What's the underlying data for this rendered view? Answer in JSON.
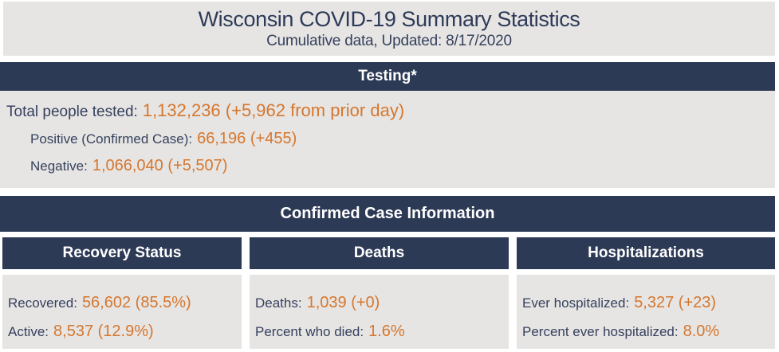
{
  "header": {
    "title": "Wisconsin COVID-19 Summary Statistics",
    "subtitle": "Cumulative data, Updated: 8/17/2020"
  },
  "testing": {
    "header": "Testing*",
    "rows": [
      {
        "label": "Total people tested:",
        "value": "1,132,236 (+5,962 from prior day)"
      },
      {
        "label": "Positive (Confirmed Case):",
        "value": "66,196 (+455)"
      },
      {
        "label": "Negative:",
        "value": "1,066,040 (+5,507)"
      }
    ]
  },
  "confirmed": {
    "header": "Confirmed Case Information",
    "columns": [
      {
        "header": "Recovery Status",
        "rows": [
          {
            "label": "Recovered:",
            "value": "56,602 (85.5%)"
          },
          {
            "label": "Active:",
            "value": "8,537 (12.9%)"
          }
        ]
      },
      {
        "header": "Deaths",
        "rows": [
          {
            "label": "Deaths:",
            "value": "1,039 (+0)"
          },
          {
            "label": "Percent who died:",
            "value": "1.6%"
          }
        ]
      },
      {
        "header": "Hospitalizations",
        "rows": [
          {
            "label": "Ever hospitalized:",
            "value": "5,327 (+23)"
          },
          {
            "label": "Percent ever hospitalized:",
            "value": "8.0%"
          }
        ]
      }
    ]
  },
  "colors": {
    "navy_bar": "#2d3a55",
    "text_navy": "#36415e",
    "value_orange": "#d5772f",
    "panel_gray": "#e6e5e3"
  }
}
